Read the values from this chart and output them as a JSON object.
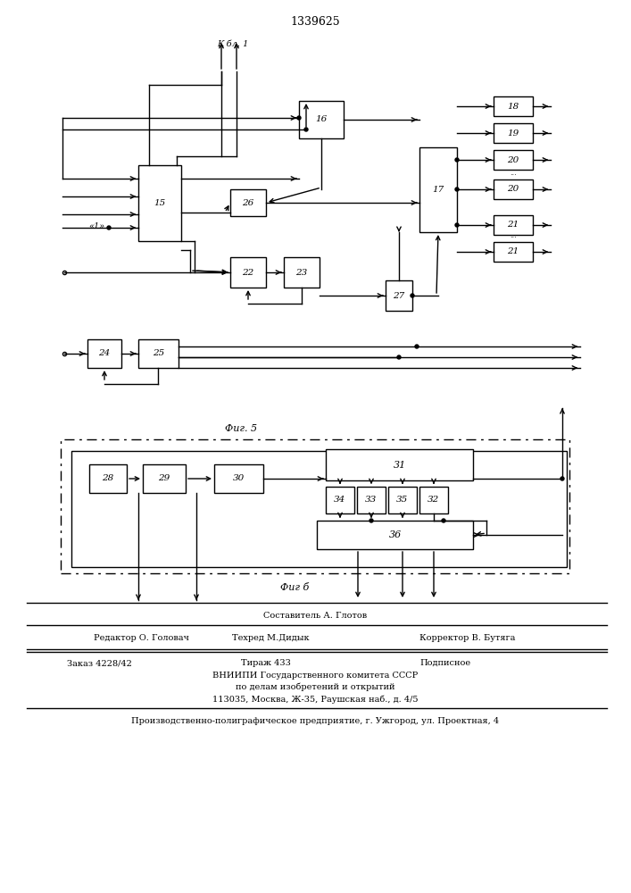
{
  "title": "1339625",
  "fig5_label": "Фиг. 5",
  "fig6_label": "Фиг б",
  "k_bl1_label": "К бл. 1",
  "label1_text": "«1»",
  "footer_line0": "Составитель А. Глотов",
  "footer_line1a": "Редактор О. Головач",
  "footer_line1b": "Техред М.Дидык",
  "footer_line1c": "Корректор В. Бутяга",
  "footer_line2a": "Заказ 4228/42",
  "footer_line2b": "Тираж 433",
  "footer_line2c": "Подписное",
  "footer_line3": "ВНИИПИ Государственного комитета СССР",
  "footer_line4": "по делам изобретений и открытий",
  "footer_line5": "113035, Москва, Ж-35, Раушская наб., д. 4/5",
  "footer_line6": "Производственно-полиграфическое предприятие, г. Ужгород, ул. Проектная, 4",
  "bg_color": "#ffffff"
}
